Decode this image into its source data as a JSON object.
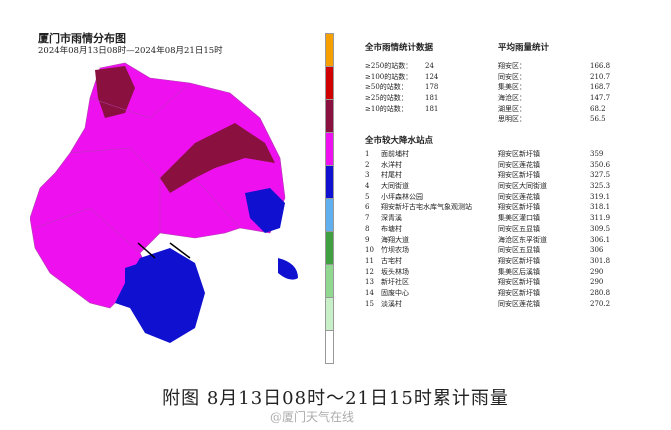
{
  "header": {
    "title": "厦门市雨情分布图",
    "subtitle": "2024年08月13日08时—2024年08月21日15时"
  },
  "legend": {
    "colors": [
      "#f5a000",
      "#d00000",
      "#8a1040",
      "#ee10ee",
      "#1010d0",
      "#60b0f0",
      "#40a040",
      "#90d890",
      "#c8f0c8",
      "#ffffff"
    ]
  },
  "stats": {
    "title": "全市雨情统计数据",
    "items": [
      {
        "label": "≥250的站数：",
        "value": "24"
      },
      {
        "label": "≥100的站数：",
        "value": "124"
      },
      {
        "label": "≥50的站数：",
        "value": "178"
      },
      {
        "label": "≥25的站数：",
        "value": "181"
      },
      {
        "label": "≥10的站数：",
        "value": "181"
      }
    ]
  },
  "avg": {
    "title": "平均雨量统计",
    "items": [
      {
        "district": "翔安区：",
        "value": "166.8"
      },
      {
        "district": "同安区：",
        "value": "210.7"
      },
      {
        "district": "集美区：",
        "value": "168.7"
      },
      {
        "district": "海沧区：",
        "value": "147.7"
      },
      {
        "district": "湖里区：",
        "value": "68.2"
      },
      {
        "district": "思明区：",
        "value": "56.5"
      }
    ]
  },
  "stations": {
    "title": "全市较大降水站点",
    "items": [
      {
        "no": "1",
        "name": "面前埔村",
        "area": "翔安区新圩镇",
        "value": "359"
      },
      {
        "no": "2",
        "name": "水洋村",
        "area": "同安区莲花镇",
        "value": "350.6"
      },
      {
        "no": "3",
        "name": "村尾村",
        "area": "翔安区新圩镇",
        "value": "327.5"
      },
      {
        "no": "4",
        "name": "大同街道",
        "area": "同安区大同街道",
        "value": "325.3"
      },
      {
        "no": "5",
        "name": "小坪森林公园",
        "area": "同安区莲花镇",
        "value": "319.1"
      },
      {
        "no": "6",
        "name": "翔安新圩古宅水库气象观测站",
        "area": "翔安区新圩镇",
        "value": "318.1"
      },
      {
        "no": "7",
        "name": "深青溪",
        "area": "集美区灌口镇",
        "value": "311.9"
      },
      {
        "no": "8",
        "name": "布塘村",
        "area": "同安区五显镇",
        "value": "309.5"
      },
      {
        "no": "9",
        "name": "海翔大道",
        "area": "海沧区东孚街道",
        "value": "306.1"
      },
      {
        "no": "10",
        "name": "竹坝农场",
        "area": "同安区五显镇",
        "value": "306"
      },
      {
        "no": "11",
        "name": "古宅村",
        "area": "翔安区新圩镇",
        "value": "301.8"
      },
      {
        "no": "12",
        "name": "坂头林场",
        "area": "集美区后溪镇",
        "value": "290"
      },
      {
        "no": "13",
        "name": "新圩社区",
        "area": "翔安区新圩镇",
        "value": "290"
      },
      {
        "no": "14",
        "name": "固废中心",
        "area": "翔安区新圩镇",
        "value": "280.8"
      },
      {
        "no": "15",
        "name": "淡溪村",
        "area": "同安区莲花镇",
        "value": "270.2"
      }
    ]
  },
  "map": {
    "base_color": "#ee10ee",
    "heavy_color": "#8a1040",
    "light_color": "#1010d0"
  },
  "caption": "附图 8月13日08时～21日15时累计雨量",
  "watermark": "@厦门天气在线"
}
